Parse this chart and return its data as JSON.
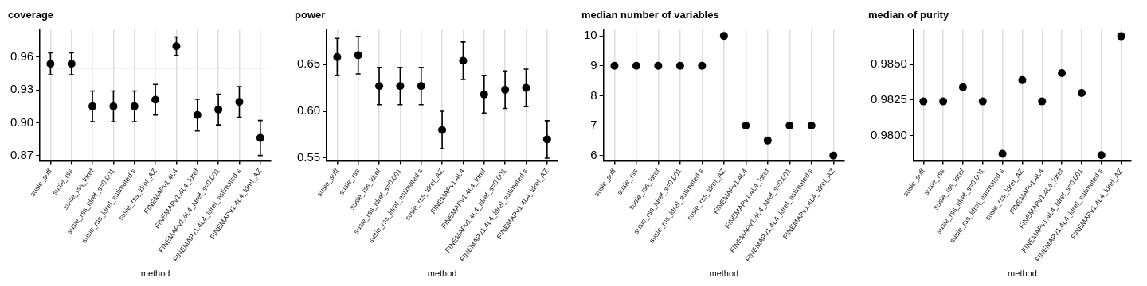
{
  "chart_data": [
    {
      "type": "scatter",
      "title": "coverage",
      "xlabel": "method",
      "categories": [
        "susie_suff",
        "susie_rss",
        "susie_rss_ldref",
        "susie_rss_ldref_s=0.001",
        "susie_rss_ldref_estimated s",
        "susie_rss_ldref_AZ",
        "FINEMAPv1.4L4",
        "FINEMAPv1.4L4_ldref",
        "FINEMAPv1.4L4_ldref_s=0.001",
        "FINEMAPv1.4L4_ldref_estimated s",
        "FINEMAPv1.4L4_ldref_AZ"
      ],
      "series": [
        {
          "color": "#000000",
          "values": [
            0.954,
            0.954,
            0.915,
            0.915,
            0.915,
            0.921,
            0.97,
            0.907,
            0.912,
            0.919,
            0.886
          ],
          "errors": [
            0.01,
            0.01,
            0.014,
            0.014,
            0.014,
            0.014,
            0.0085,
            0.0145,
            0.014,
            0.014,
            0.016
          ]
        }
      ],
      "ylim": [
        0.865,
        0.985
      ],
      "yticks": [
        0.87,
        0.93,
        {
          "value": 0.9,
          "label": "0.90"
        },
        0.96
      ],
      "ref_lines": [
        {
          "axis": "y",
          "value": 0.95,
          "color": "#bbbbbb"
        }
      ],
      "grid": "x",
      "marker": "circle",
      "legend": false
    },
    {
      "type": "scatter",
      "title": "power",
      "xlabel": "method",
      "categories": [
        "susie_suff",
        "susie_rss",
        "susie_rss_ldref",
        "susie_rss_ldref_s=0.001",
        "susie_rss_ldref_estimated s",
        "susie_rss_ldref_AZ",
        "FINEMAPv1.4L4",
        "FINEMAPv1.4L4_ldref",
        "FINEMAPv1.4L4_ldref_s=0.001",
        "FINEMAPv1.4L4_ldref_estimated s",
        "FINEMAPv1.4L4_ldref_AZ"
      ],
      "series": [
        {
          "color": "#000000",
          "values": [
            0.658,
            0.66,
            0.627,
            0.627,
            0.627,
            0.58,
            0.654,
            0.618,
            0.623,
            0.625,
            0.57
          ],
          "errors": [
            0.02,
            0.02,
            0.02,
            0.02,
            0.02,
            0.02,
            0.02,
            0.02,
            0.02,
            0.02,
            0.02
          ]
        }
      ],
      "ylim": [
        0.547,
        0.687
      ],
      "yticks": [
        0.55,
        {
          "value": 0.6,
          "label": "0.60"
        },
        0.65
      ],
      "grid": "x",
      "marker": "circle",
      "legend": false
    },
    {
      "type": "scatter",
      "title": "median number of variables",
      "xlabel": "method",
      "categories": [
        "susie_suff",
        "susie_rss",
        "susie_rss_ldref",
        "susie_rss_ldref_s=0.001",
        "susie_rss_ldref_estimated s",
        "susie_rss_ldref_AZ",
        "FINEMAPv1.4L4",
        "FINEMAPv1.4L4_ldref",
        "FINEMAPv1.4L4_ldref_s=0.001",
        "FINEMAPv1.4L4_ldref_estimated s",
        "FINEMAPv1.4L4_ldref_AZ"
      ],
      "series": [
        {
          "color": "#000000",
          "values": [
            9,
            9,
            9,
            9,
            9,
            10,
            7,
            6.5,
            7,
            7,
            6
          ]
        }
      ],
      "ylim": [
        5.82,
        10.2
      ],
      "yticks": [
        6,
        7,
        8,
        9,
        10
      ],
      "grid": "x",
      "marker": "circle",
      "legend": false
    },
    {
      "type": "scatter",
      "title": "median of purity",
      "xlabel": "method",
      "categories": [
        "susie_suff",
        "susie_rss",
        "susie_rss_ldref",
        "susie_rss_ldref_s=0.001",
        "susie_rss_ldref_estimated s",
        "susie_rss_ldref_AZ",
        "FINEMAPv1.4L4",
        "FINEMAPv1.4L4_ldref",
        "FINEMAPv1.4L4_ldref_s=0.001",
        "FINEMAPv1.4L4_ldref_estimated s",
        "FINEMAPv1.4L4_ldref_AZ"
      ],
      "series": [
        {
          "color": "#000000",
          "values": [
            0.9824,
            0.9824,
            0.9834,
            0.9824,
            0.9787,
            0.9839,
            0.9824,
            0.9844,
            0.983,
            0.9786,
            0.987
          ]
        }
      ],
      "ylim": [
        0.9782,
        0.98745
      ],
      "yticks": [
        {
          "value": 0.98,
          "label": "0.9800"
        },
        0.9825,
        {
          "value": 0.985,
          "label": "0.9850"
        }
      ],
      "grid": "x",
      "marker": "circle",
      "legend": false
    }
  ]
}
